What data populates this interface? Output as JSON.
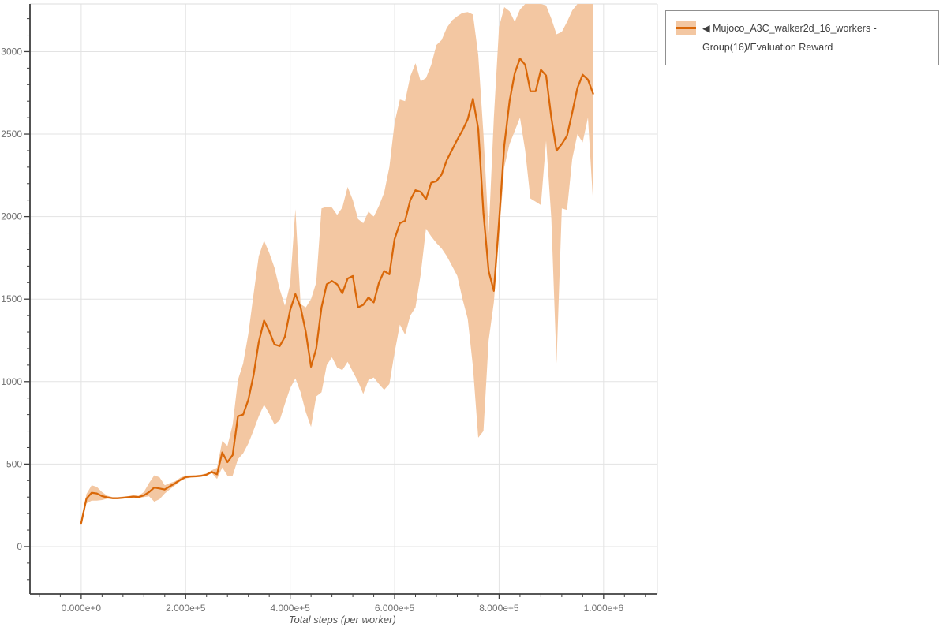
{
  "legend": {
    "label": "◀ Mujoco_A3C_walker2d_16_workers - Group(16)/Evaluation Reward"
  },
  "colors": {
    "line": "#d96708",
    "band": "#f3c7a2",
    "grid": "#e3e3e3",
    "frame": "#dedede",
    "axis": "#3f3f3f",
    "tick_label": "#707070",
    "axis_title": "#555555",
    "legend_border": "#909090",
    "background": "#ffffff"
  },
  "chart_data": {
    "type": "line",
    "title": "",
    "xlabel": "Total steps (per worker)",
    "ylabel": "",
    "grid": "major",
    "legend_position": "top-right-outside",
    "xlim": [
      -98000,
      1103000
    ],
    "ylim": [
      -287,
      3289
    ],
    "x_ticks": [
      {
        "value": 0,
        "label": "0.000e+0"
      },
      {
        "value": 200000,
        "label": "2.000e+5"
      },
      {
        "value": 400000,
        "label": "4.000e+5"
      },
      {
        "value": 600000,
        "label": "6.000e+5"
      },
      {
        "value": 800000,
        "label": "8.000e+5"
      },
      {
        "value": 1000000,
        "label": "1.000e+6"
      }
    ],
    "x_minor_step": 40000,
    "x_major_every": 200000,
    "y_ticks": [
      {
        "value": 0,
        "label": "0"
      },
      {
        "value": 500,
        "label": "500"
      },
      {
        "value": 1000,
        "label": "1000"
      },
      {
        "value": 1500,
        "label": "1500"
      },
      {
        "value": 2000,
        "label": "2000"
      },
      {
        "value": 2500,
        "label": "2500"
      },
      {
        "value": 3000,
        "label": "3000"
      }
    ],
    "y_minor_step": 100,
    "y_major_every": 500,
    "series": [
      {
        "name": "Mujoco_A3C_walker2d_16_workers - Group(16)/Evaluation Reward",
        "x_start": 0,
        "x_step": 10000,
        "mean": [
          143,
          290,
          326,
          322,
          306,
          298,
          293,
          293,
          296,
          299,
          303,
          300,
          310,
          330,
          358,
          352,
          346,
          366,
          384,
          405,
          421,
          425,
          426,
          429,
          436,
          453,
          438,
          570,
          512,
          555,
          790,
          800,
          890,
          1040,
          1240,
          1370,
          1305,
          1225,
          1215,
          1272,
          1434,
          1530,
          1450,
          1300,
          1090,
          1200,
          1450,
          1590,
          1610,
          1590,
          1535,
          1625,
          1640,
          1450,
          1465,
          1510,
          1480,
          1600,
          1670,
          1650,
          1864,
          1960,
          1975,
          2100,
          2160,
          2150,
          2105,
          2205,
          2215,
          2255,
          2343,
          2405,
          2467,
          2524,
          2590,
          2715,
          2534,
          2022,
          1670,
          1550,
          1974,
          2430,
          2700,
          2870,
          2958,
          2920,
          2760,
          2760,
          2890,
          2855,
          2600,
          2400,
          2440,
          2490,
          2630,
          2780,
          2860,
          2830,
          2745
        ],
        "lower": [
          140,
          262,
          278,
          278,
          282,
          290,
          287,
          289,
          291,
          294,
          298,
          295,
          300,
          305,
          272,
          287,
          322,
          348,
          372,
          396,
          413,
          418,
          420,
          423,
          429,
          446,
          410,
          480,
          430,
          430,
          530,
          565,
          625,
          705,
          790,
          860,
          805,
          740,
          765,
          865,
          960,
          1020,
          935,
          815,
          725,
          910,
          935,
          1100,
          1147,
          1085,
          1070,
          1120,
          1060,
          1000,
          925,
          1010,
          1025,
          985,
          950,
          985,
          1176,
          1345,
          1285,
          1400,
          1450,
          1650,
          1927,
          1880,
          1840,
          1807,
          1760,
          1700,
          1640,
          1500,
          1380,
          1090,
          660,
          700,
          1250,
          1480,
          1880,
          2300,
          2440,
          2520,
          2600,
          2400,
          2110,
          2090,
          2070,
          2460,
          1990,
          1110,
          2050,
          2040,
          2350,
          2500,
          2450,
          2600,
          2080
        ],
        "upper": [
          148,
          318,
          372,
          362,
          330,
          308,
          300,
          300,
          303,
          306,
          312,
          308,
          330,
          385,
          432,
          420,
          372,
          385,
          396,
          418,
          430,
          432,
          433,
          436,
          444,
          462,
          478,
          640,
          610,
          740,
          1010,
          1110,
          1290,
          1530,
          1760,
          1855,
          1780,
          1690,
          1560,
          1460,
          1590,
          2045,
          1470,
          1450,
          1500,
          1600,
          2050,
          2060,
          2055,
          2010,
          2055,
          2180,
          2100,
          1985,
          1960,
          2030,
          2000,
          2065,
          2145,
          2300,
          2570,
          2710,
          2700,
          2850,
          2930,
          2820,
          2840,
          2920,
          3040,
          3070,
          3145,
          3190,
          3215,
          3235,
          3240,
          3225,
          2980,
          2500,
          1900,
          2600,
          3150,
          3270,
          3245,
          3180,
          3255,
          3289,
          3289,
          3289,
          3289,
          3280,
          3200,
          3105,
          3120,
          3180,
          3250,
          3289,
          3289,
          3289,
          3289
        ]
      }
    ]
  }
}
